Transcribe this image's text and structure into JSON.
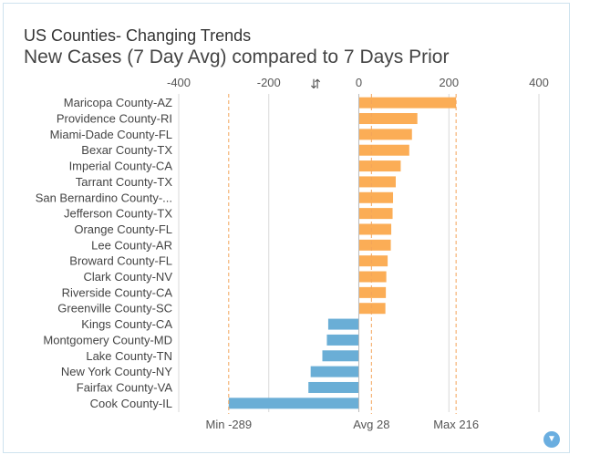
{
  "header": {
    "title": "US Counties- Changing Trends",
    "subtitle": "New Cases (7 Day Avg) compared to 7 Days Prior"
  },
  "colors": {
    "positive": "#fbad56",
    "negative": "#6aaed6",
    "grid": "#d9d9d9",
    "refline": "#f3a45a",
    "text": "#444444"
  },
  "icons": {
    "sort": "sort-icon",
    "filter": "filter-icon"
  },
  "chart_data": {
    "type": "bar",
    "orientation": "horizontal",
    "title": "New Cases (7 Day Avg) compared to 7 Days Prior",
    "categories": [
      "Maricopa County-AZ",
      "Providence County-RI",
      "Miami-Dade County-FL",
      "Bexar County-TX",
      "Imperial County-CA",
      "Tarrant County-TX",
      "San Bernardino County-...",
      "Jefferson County-TX",
      "Orange County-FL",
      "Lee County-AR",
      "Broward County-FL",
      "Clark County-NV",
      "Riverside County-CA",
      "Greenville County-SC",
      "Kings County-CA",
      "Montgomery County-MD",
      "Lake County-TN",
      "New York County-NY",
      "Fairfax County-VA",
      "Cook County-IL"
    ],
    "values": [
      216,
      130,
      118,
      112,
      93,
      82,
      76,
      75,
      72,
      71,
      64,
      61,
      60,
      59,
      -68,
      -71,
      -81,
      -107,
      -112,
      -289
    ],
    "xlim": [
      -400,
      450
    ],
    "ticks": [
      "-400",
      "-200",
      "0",
      "200",
      "400"
    ],
    "tick_values": [
      -400,
      -200,
      0,
      200,
      400
    ],
    "reference_lines": [
      {
        "label": "Min -289",
        "value": -289
      },
      {
        "label": "Avg 28",
        "value": 28
      },
      {
        "label": "Max 216",
        "value": 216
      }
    ]
  }
}
